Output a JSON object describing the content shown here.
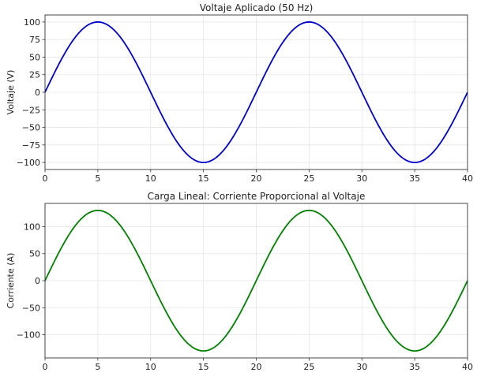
{
  "chart_data": [
    {
      "type": "line",
      "title": "Voltaje Aplicado (50 Hz)",
      "xlabel": "",
      "ylabel": "Voltaje (V)",
      "xlim": [
        0,
        40
      ],
      "ylim": [
        -110,
        110
      ],
      "xticks": [
        0,
        5,
        10,
        15,
        20,
        25,
        30,
        35,
        40
      ],
      "yticks": [
        -100,
        -75,
        -50,
        -25,
        0,
        25,
        50,
        75,
        100
      ],
      "grid": true,
      "series": [
        {
          "name": "Voltaje",
          "color": "#0000cc",
          "function": "100*sin(2*pi*x/20)",
          "x": [
            0,
            2.5,
            5,
            7.5,
            10,
            12.5,
            15,
            17.5,
            20,
            22.5,
            25,
            27.5,
            30,
            32.5,
            35,
            37.5,
            40
          ],
          "values": [
            0,
            70.7,
            100,
            70.7,
            0,
            -70.7,
            -100,
            -70.7,
            0,
            70.7,
            100,
            70.7,
            0,
            -70.7,
            -100,
            -70.7,
            0
          ]
        }
      ]
    },
    {
      "type": "line",
      "title": "Carga Lineal: Corriente Proporcional al Voltaje",
      "xlabel": "",
      "ylabel": "Corriente (A)",
      "xlim": [
        0,
        40
      ],
      "ylim": [
        -143,
        143
      ],
      "xticks": [
        0,
        5,
        10,
        15,
        20,
        25,
        30,
        35,
        40
      ],
      "yticks": [
        -100,
        -50,
        0,
        50,
        100
      ],
      "grid": true,
      "series": [
        {
          "name": "Corriente",
          "color": "#008000",
          "function": "130*sin(2*pi*x/20)",
          "x": [
            0,
            2.5,
            5,
            7.5,
            10,
            12.5,
            15,
            17.5,
            20,
            22.5,
            25,
            27.5,
            30,
            32.5,
            35,
            37.5,
            40
          ],
          "values": [
            0,
            91.9,
            130,
            91.9,
            0,
            -91.9,
            -130,
            -91.9,
            0,
            91.9,
            130,
            91.9,
            0,
            -91.9,
            -130,
            -91.9,
            0
          ]
        }
      ]
    }
  ]
}
